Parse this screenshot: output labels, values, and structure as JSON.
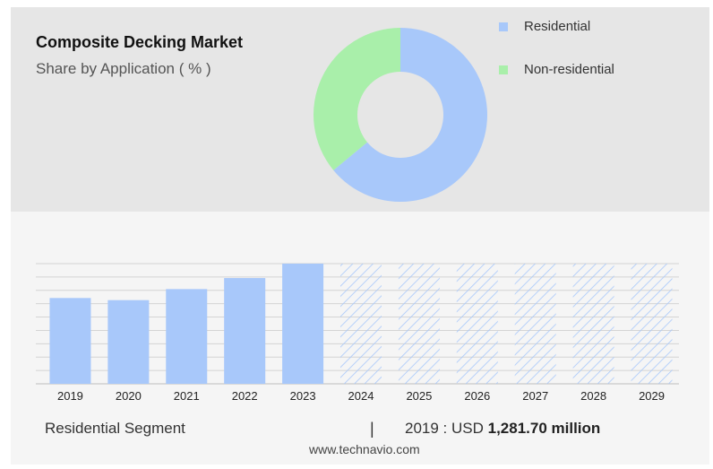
{
  "header": {
    "title": "Composite Decking Market",
    "subtitle": "Share by Application ( % )"
  },
  "legend": [
    {
      "label": "Residential",
      "color": "#a8c8fa"
    },
    {
      "label": "Non-residential",
      "color": "#a9efaa"
    }
  ],
  "chart_data": [
    {
      "type": "pie",
      "donut": true,
      "title": "Share by Application ( % )",
      "categories": [
        "Residential",
        "Non-residential"
      ],
      "values": [
        64,
        36
      ],
      "colors": [
        "#a8c8fa",
        "#a9efaa"
      ]
    },
    {
      "type": "bar",
      "categories": [
        "2019",
        "2020",
        "2021",
        "2022",
        "2023",
        "2024",
        "2025",
        "2026",
        "2027",
        "2028",
        "2029"
      ],
      "values": [
        1281.7,
        1250,
        1415,
        1580,
        1795,
        1795,
        1795,
        1795,
        1795,
        1795,
        1795
      ],
      "forecast_from": "2024",
      "bar_color": "#a8c8fa",
      "grid": true,
      "ylim": [
        0,
        1795
      ]
    }
  ],
  "footer": {
    "segment_label": "Residential Segment",
    "divider": "|",
    "value_prefix": "2019 : USD ",
    "value_bold": "1,281.70 million",
    "source": "www.technavio.com"
  }
}
